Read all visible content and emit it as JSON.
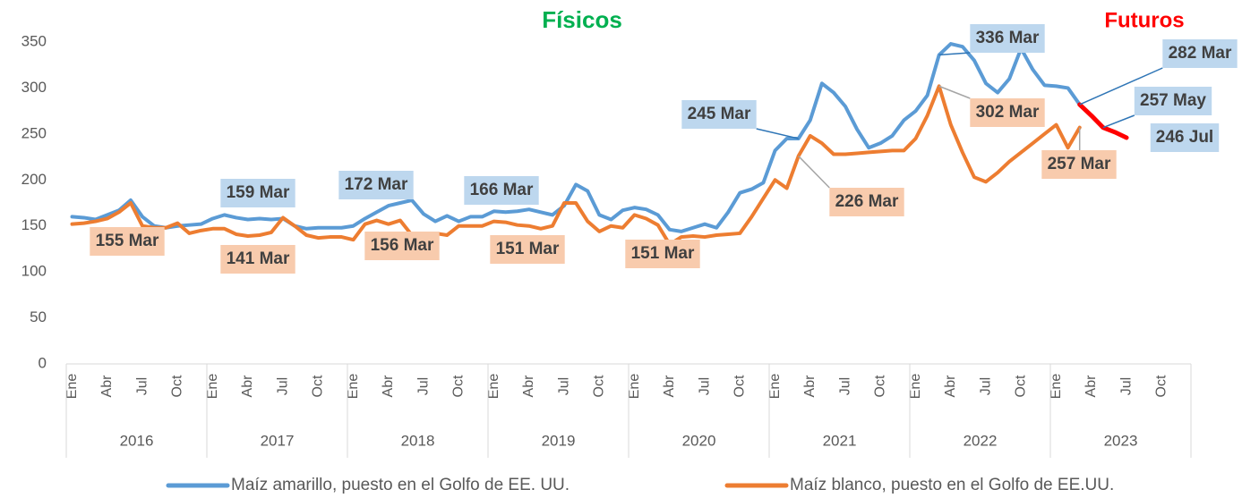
{
  "chart_data": {
    "type": "line",
    "title": "Físicos",
    "title_color": "#00b050",
    "futures_title": "Futuros",
    "futures_title_color": "#ff0000",
    "categories": [
      "Ene",
      null,
      null,
      "Abr",
      null,
      null,
      "Jul",
      null,
      null,
      "Oct",
      null,
      null,
      "Ene",
      null,
      null,
      "Abr",
      null,
      null,
      "Jul",
      null,
      null,
      "Oct",
      null,
      null,
      "Ene",
      null,
      null,
      "Abr",
      null,
      null,
      "Jul",
      null,
      null,
      "Oct",
      null,
      null,
      "Ene",
      null,
      null,
      "Abr",
      null,
      null,
      "Jul",
      null,
      null,
      "Oct",
      null,
      null,
      "Ene",
      null,
      null,
      "Abr",
      null,
      null,
      "Jul",
      null,
      null,
      "Oct",
      null,
      null,
      "Ene",
      null,
      null,
      "Abr",
      null,
      null,
      "Jul",
      null,
      null,
      "Oct",
      null,
      null,
      "Ene",
      null,
      null,
      "Abr",
      null,
      null,
      "Jul",
      null,
      null,
      "Oct",
      null,
      null,
      "Ene",
      null,
      null,
      "Abr",
      null,
      null,
      "Jul",
      null,
      null,
      "Oct",
      null,
      null
    ],
    "category_groups": [
      "2016",
      "2017",
      "2018",
      "2019",
      "2020",
      "2021",
      "2022",
      "2023"
    ],
    "series": [
      {
        "name": "Maíz amarillo, puesto en el Golfo de EE. UU.",
        "color": "#5b9bd5",
        "values": [
          160,
          159,
          157,
          162,
          167,
          178,
          160,
          150,
          148,
          150,
          151,
          152,
          158,
          162,
          159,
          157,
          158,
          157,
          158,
          150,
          147,
          148,
          148,
          148,
          150,
          158,
          165,
          172,
          175,
          178,
          163,
          155,
          161,
          155,
          160,
          160,
          166,
          165,
          166,
          168,
          165,
          162,
          172,
          195,
          188,
          162,
          157,
          167,
          170,
          168,
          162,
          146,
          144,
          148,
          152,
          148,
          165,
          186,
          190,
          197,
          232,
          245,
          245,
          265,
          305,
          295,
          280,
          255,
          235,
          240,
          248,
          265,
          275,
          292,
          336,
          348,
          345,
          330,
          305,
          295,
          310,
          343,
          320,
          303,
          302,
          300,
          282,
          null,
          null,
          null,
          null,
          null,
          null,
          null,
          null,
          null
        ]
      },
      {
        "name": "Maíz blanco, puesto en el Golfo de EE.UU.",
        "color": "#ed7d31",
        "values": [
          152,
          153,
          155,
          158,
          165,
          175,
          150,
          148,
          148,
          153,
          142,
          145,
          147,
          147,
          141,
          139,
          140,
          143,
          159,
          150,
          140,
          137,
          138,
          138,
          135,
          152,
          156,
          152,
          156,
          140,
          140,
          142,
          140,
          150,
          150,
          150,
          155,
          154,
          151,
          150,
          147,
          150,
          175,
          175,
          155,
          144,
          150,
          148,
          162,
          158,
          151,
          130,
          138,
          139,
          138,
          140,
          141,
          142,
          160,
          180,
          200,
          191,
          226,
          248,
          240,
          228,
          228,
          229,
          230,
          231,
          232,
          232,
          245,
          270,
          302,
          260,
          230,
          203,
          198,
          208,
          220,
          230,
          240,
          250,
          260,
          235,
          257,
          null,
          null,
          null,
          null,
          null,
          null,
          null,
          null,
          null
        ]
      },
      {
        "color": "#ff0000",
        "values": [
          null,
          null,
          null,
          null,
          null,
          null,
          null,
          null,
          null,
          null,
          null,
          null,
          null,
          null,
          null,
          null,
          null,
          null,
          null,
          null,
          null,
          null,
          null,
          null,
          null,
          null,
          null,
          null,
          null,
          null,
          null,
          null,
          null,
          null,
          null,
          null,
          null,
          null,
          null,
          null,
          null,
          null,
          null,
          null,
          null,
          null,
          null,
          null,
          null,
          null,
          null,
          null,
          null,
          null,
          null,
          null,
          null,
          null,
          null,
          null,
          null,
          null,
          null,
          null,
          null,
          null,
          null,
          null,
          null,
          null,
          null,
          null,
          null,
          null,
          null,
          null,
          null,
          null,
          null,
          null,
          null,
          null,
          null,
          null,
          null,
          null,
          282,
          270,
          257,
          252,
          246,
          null,
          null,
          null,
          null,
          null
        ]
      }
    ],
    "ylim": [
      0,
      350
    ],
    "yticks": [
      0,
      50,
      100,
      150,
      200,
      250,
      300,
      350
    ],
    "annotations": [
      {
        "label": "155 Mar",
        "box_color": "#f8cbad"
      },
      {
        "label": "159 Mar",
        "box_color": "#bdd7ee"
      },
      {
        "label": "141 Mar",
        "box_color": "#f8cbad"
      },
      {
        "label": "172 Mar",
        "box_color": "#bdd7ee"
      },
      {
        "label": "156 Mar",
        "box_color": "#f8cbad"
      },
      {
        "label": "166 Mar",
        "box_color": "#bdd7ee"
      },
      {
        "label": "151 Mar",
        "box_color": "#f8cbad"
      },
      {
        "label": "151 Mar",
        "box_color": "#f8cbad"
      },
      {
        "label": "245 Mar",
        "box_color": "#bdd7ee"
      },
      {
        "label": "226 Mar",
        "box_color": "#f8cbad"
      },
      {
        "label": "336 Mar",
        "box_color": "#bdd7ee"
      },
      {
        "label": "302 Mar",
        "box_color": "#f8cbad"
      },
      {
        "label": "257 Mar",
        "box_color": "#f8cbad"
      },
      {
        "label": "282 Mar",
        "box_color": "#bdd7ee"
      },
      {
        "label": "257 May",
        "box_color": "#bdd7ee"
      },
      {
        "label": "246 Jul",
        "box_color": "#bdd7ee"
      }
    ]
  }
}
